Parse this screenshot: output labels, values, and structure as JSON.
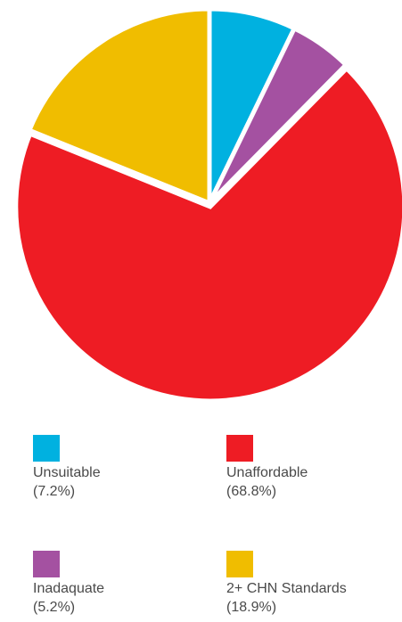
{
  "chart_data": {
    "type": "pie",
    "title": "",
    "categories": [
      "Unsuitable",
      "Inadaquate",
      "Unaffordable",
      "2+ CHN Standards"
    ],
    "values": [
      7.2,
      5.2,
      68.8,
      18.9
    ],
    "value_labels": [
      "(7.2%)",
      "(5.2%)",
      "(68.8%)",
      "(18.9%)"
    ],
    "colors": [
      "#00b1e0",
      "#a451a1",
      "#ee1c24",
      "#f0bd00"
    ],
    "exploded_slice": "Unaffordable",
    "legend_position": "bottom"
  }
}
